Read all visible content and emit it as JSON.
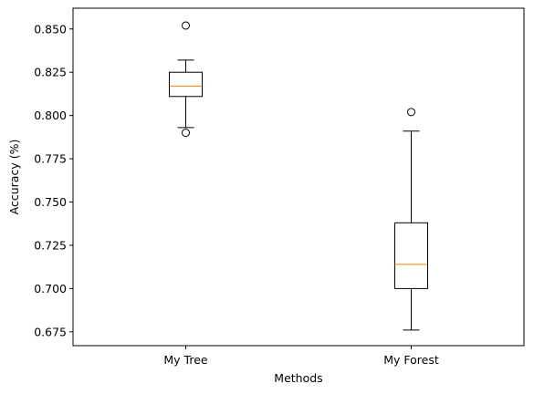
{
  "chart_data": {
    "type": "box",
    "xlabel": "Methods",
    "ylabel": "Accuracy (%)",
    "ylim": [
      0.667,
      0.862
    ],
    "yticks": [
      0.675,
      0.7,
      0.725,
      0.75,
      0.775,
      0.8,
      0.825,
      0.85
    ],
    "ytick_labels": [
      "0.675",
      "0.700",
      "0.725",
      "0.750",
      "0.775",
      "0.800",
      "0.825",
      "0.850"
    ],
    "grid": false,
    "categories": [
      "My Tree",
      "My Forest"
    ],
    "boxes": [
      {
        "name": "My Tree",
        "whisker_low": 0.793,
        "q1": 0.811,
        "median": 0.817,
        "q3": 0.825,
        "whisker_high": 0.832,
        "outliers": [
          0.852,
          0.79
        ]
      },
      {
        "name": "My Forest",
        "whisker_low": 0.676,
        "q1": 0.7,
        "median": 0.714,
        "q3": 0.738,
        "whisker_high": 0.791,
        "outliers": [
          0.802
        ]
      }
    ],
    "colors": {
      "box": "#000000",
      "median": "#ff7f0e",
      "background": "#ffffff"
    }
  }
}
